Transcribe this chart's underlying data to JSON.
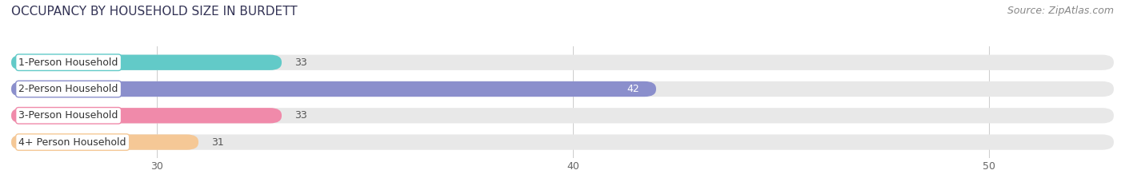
{
  "title": "OCCUPANCY BY HOUSEHOLD SIZE IN BURDETT",
  "source": "Source: ZipAtlas.com",
  "categories": [
    "1-Person Household",
    "2-Person Household",
    "3-Person Household",
    "4+ Person Household"
  ],
  "values": [
    33,
    42,
    33,
    31
  ],
  "bar_colors": [
    "#62cac8",
    "#8b8fcc",
    "#f08aaa",
    "#f5c896"
  ],
  "label_bg_colors": [
    "#ffffff",
    "#ffffff",
    "#ffffff",
    "#ffffff"
  ],
  "label_border_colors": [
    "#62cac8",
    "#8b8fcc",
    "#f08aaa",
    "#f5c896"
  ],
  "xlim": [
    26.5,
    53
  ],
  "xticks": [
    30,
    40,
    50
  ],
  "bar_height": 0.58,
  "title_fontsize": 11,
  "source_fontsize": 9,
  "label_fontsize": 9,
  "value_fontsize": 9,
  "tick_fontsize": 9,
  "background_color": "#ffffff",
  "bar_background_color": "#e8e8e8",
  "value_color_inside": "#ffffff",
  "value_color_outside": "#555555",
  "inside_bar_threshold": 42
}
